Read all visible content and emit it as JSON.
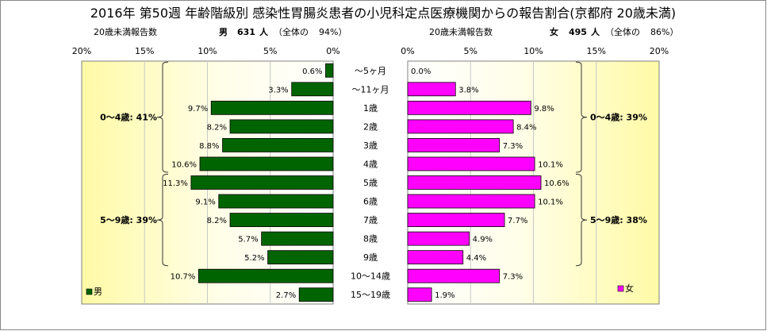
{
  "chart_data": {
    "type": "bar",
    "title": "2016年 第50週 年齢階級別 感染性胃腸炎患者の小児科定点医療機関からの報告割合(京都府 20歳未満)",
    "categories": [
      "～5ヶ月",
      "～11ヶ月",
      "1歳",
      "2歳",
      "3歳",
      "4歳",
      "5歳",
      "6歳",
      "7歳",
      "8歳",
      "9歳",
      "10～14歳",
      "15～19歳"
    ],
    "x_ticks": [
      "20%",
      "15%",
      "10%",
      "5%",
      "0%"
    ],
    "x_ticks_right": [
      "0%",
      "5%",
      "10%",
      "15%",
      "20%"
    ],
    "xlim": [
      0,
      20
    ],
    "grid": true,
    "series": [
      {
        "name": "男",
        "color": "#006400",
        "values": [
          0.6,
          3.3,
          9.7,
          8.2,
          8.8,
          10.6,
          11.3,
          9.1,
          8.2,
          5.7,
          5.2,
          10.7,
          2.7
        ],
        "labels": [
          "0.6%",
          "3.3%",
          "9.7%",
          "8.2%",
          "8.8%",
          "10.6%",
          "11.3%",
          "9.1%",
          "8.2%",
          "5.7%",
          "5.2%",
          "10.7%",
          "2.7%"
        ],
        "header": {
          "report_label": "20歳未満報告数",
          "sex": "男",
          "count": "631",
          "unit": "人",
          "share_open": "（全体の",
          "share_value": "94%）"
        },
        "groups": [
          {
            "text": "0～4歳: 41%",
            "from": 0,
            "to": 5
          },
          {
            "text": "5～9歳: 39%",
            "from": 6,
            "to": 10
          }
        ]
      },
      {
        "name": "女",
        "color": "#ff00ff",
        "values": [
          0.0,
          3.8,
          9.8,
          8.4,
          7.3,
          10.1,
          10.6,
          10.1,
          7.7,
          4.9,
          4.4,
          7.3,
          1.9
        ],
        "labels": [
          "0.0%",
          "3.8%",
          "9.8%",
          "8.4%",
          "7.3%",
          "10.1%",
          "10.6%",
          "10.1%",
          "7.7%",
          "4.9%",
          "4.4%",
          "7.3%",
          "1.9%"
        ],
        "header": {
          "report_label": "20歳未満報告数",
          "sex": "女",
          "count": "495",
          "unit": "人",
          "share_open": "（全体の",
          "share_value": "86%）"
        },
        "groups": [
          {
            "text": "0～4歳: 39%",
            "from": 0,
            "to": 5
          },
          {
            "text": "5～9歳: 38%",
            "from": 6,
            "to": 10
          }
        ]
      }
    ]
  }
}
